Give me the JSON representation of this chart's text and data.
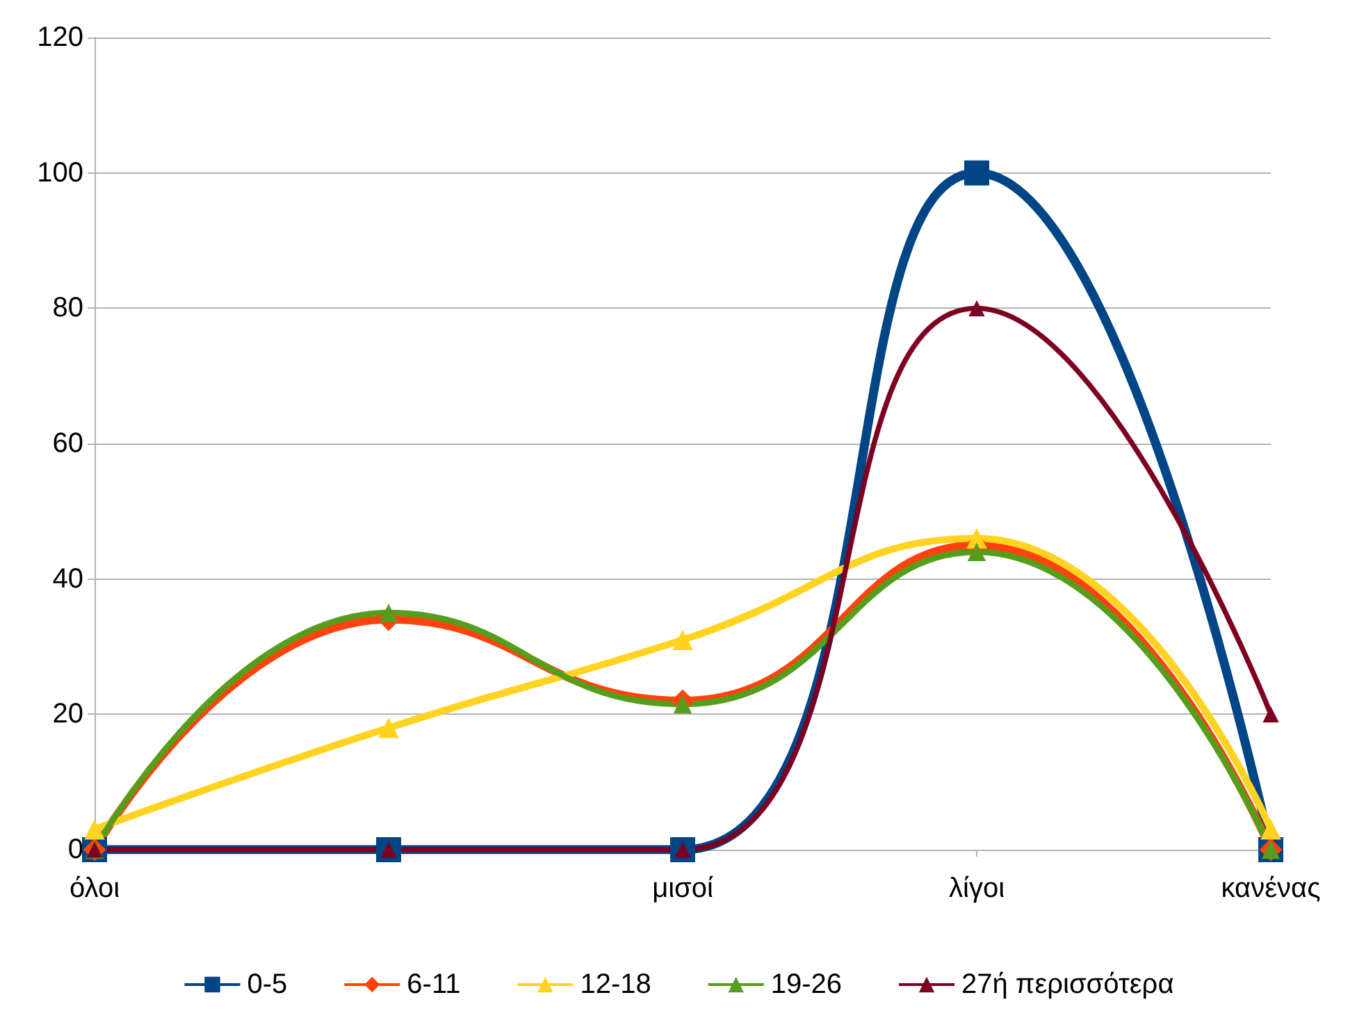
{
  "chart_data": {
    "type": "line",
    "categories": [
      "όλοι",
      null,
      "μισοί",
      "λίγοι",
      "κανένας"
    ],
    "series": [
      {
        "name": "0-5",
        "color": "#004586",
        "marker": "square",
        "values": [
          0,
          0,
          0,
          100,
          0
        ]
      },
      {
        "name": "6-11",
        "color": "#ff420e",
        "marker": "diamond",
        "values": [
          0,
          34,
          22,
          45,
          0
        ]
      },
      {
        "name": "12-18",
        "color": "#ffd320",
        "marker": "triangle",
        "values": [
          3,
          18,
          31,
          46,
          3
        ]
      },
      {
        "name": "19-26",
        "color": "#579d1c",
        "marker": "triangle",
        "values": [
          0,
          35,
          21.5,
          44,
          0
        ]
      },
      {
        "name": "27ή περισσότερα",
        "color": "#7e0021",
        "marker": "triangle",
        "values": [
          0,
          0,
          0,
          80,
          20
        ]
      }
    ],
    "ylim": [
      0,
      120
    ],
    "yticks": [
      0,
      20,
      40,
      60,
      80,
      100,
      120
    ],
    "grid": "y",
    "legend": "bottom"
  }
}
